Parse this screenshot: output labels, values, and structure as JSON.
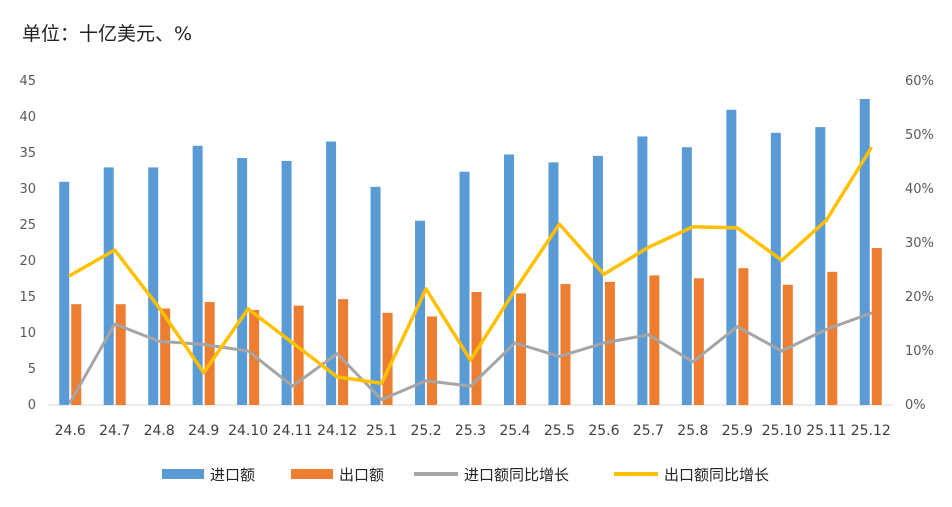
{
  "unit_label": "单位：十亿美元、%",
  "colors": {
    "import": "#5b9bd5",
    "export": "#ed7d31",
    "import_yoy": "#a5a5a5",
    "export_yoy": "#ffc000"
  },
  "chart_data": {
    "type": "bar",
    "categories": [
      "24.6",
      "24.7",
      "24.8",
      "24.9",
      "24.10",
      "24.11",
      "24.12",
      "25.1",
      "25.2",
      "25.3",
      "25.4",
      "25.5",
      "25.6",
      "25.7",
      "25.8",
      "25.9",
      "25.10",
      "25.11",
      "25.12"
    ],
    "y_left": {
      "ylim": [
        0,
        45
      ],
      "ticks": [
        "0",
        "5",
        "10",
        "15",
        "20",
        "25",
        "30",
        "35",
        "40",
        "45"
      ]
    },
    "y_right": {
      "ylim": [
        0,
        60
      ],
      "ticks": [
        "0%",
        "10%",
        "20%",
        "30%",
        "40%",
        "50%",
        "60%"
      ]
    },
    "series": [
      {
        "name": "进口额",
        "type": "bar",
        "axis": "left",
        "values": [
          31.0,
          33.0,
          33.0,
          36.0,
          34.3,
          33.9,
          36.6,
          30.3,
          25.6,
          32.4,
          34.8,
          33.7,
          34.6,
          37.3,
          35.8,
          41.0,
          37.8,
          38.6,
          42.5
        ]
      },
      {
        "name": "出口额",
        "type": "bar",
        "axis": "left",
        "values": [
          14.0,
          14.0,
          13.4,
          14.3,
          13.2,
          13.8,
          14.7,
          12.8,
          12.3,
          15.7,
          15.5,
          16.8,
          17.1,
          18.0,
          17.6,
          19.0,
          16.7,
          18.5,
          21.8
        ]
      },
      {
        "name": "进口额同比增长",
        "type": "line",
        "axis": "right",
        "values": [
          0.5,
          15.0,
          11.8,
          11.2,
          10.0,
          3.5,
          9.5,
          1.0,
          4.5,
          3.5,
          11.5,
          9.0,
          11.5,
          13.0,
          8.0,
          14.5,
          10.0,
          14.0,
          17.0
        ]
      },
      {
        "name": "出口额同比增长",
        "type": "line",
        "axis": "right",
        "values": [
          24.0,
          28.7,
          18.0,
          6.0,
          17.8,
          11.5,
          5.2,
          4.0,
          21.5,
          8.3,
          21.3,
          33.5,
          24.2,
          29.2,
          33.0,
          32.8,
          26.8,
          34.2,
          47.5
        ]
      }
    ]
  }
}
